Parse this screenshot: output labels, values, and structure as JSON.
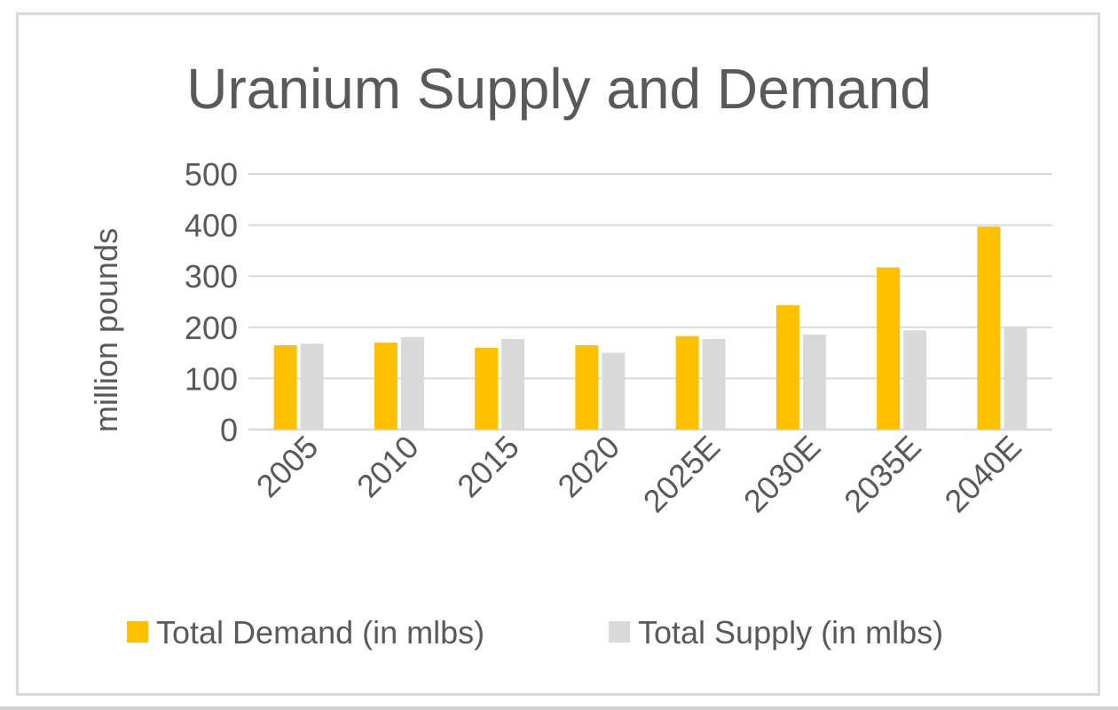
{
  "chart_data": {
    "type": "bar",
    "title": "Uranium Supply and Demand",
    "xlabel": "",
    "ylabel": "million pounds",
    "ylim": [
      0,
      500
    ],
    "yticks": [
      0,
      100,
      200,
      300,
      400,
      500
    ],
    "grid": true,
    "legend_position": "bottom",
    "categories": [
      "2005",
      "2010",
      "2015",
      "2020",
      "2025E",
      "2030E",
      "2035E",
      "2040E"
    ],
    "series": [
      {
        "name": "Total Demand (in mlbs)",
        "color": "#ffc000",
        "values": [
          165,
          170,
          160,
          165,
          183,
          243,
          317,
          397
        ]
      },
      {
        "name": "Total Supply (in mlbs)",
        "color": "#d9d9d9",
        "values": [
          168,
          181,
          177,
          150,
          177,
          186,
          194,
          201
        ]
      }
    ]
  }
}
